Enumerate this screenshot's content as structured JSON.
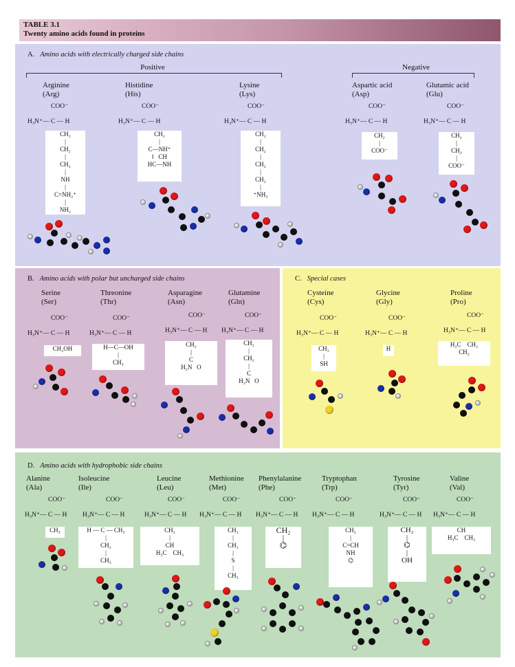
{
  "table": {
    "number": "TABLE 3.1",
    "title": "Twenty amino acids found in proteins"
  },
  "colors": {
    "header_start": "#e9c9d6",
    "header_end": "#8f566c",
    "panel_a": "#d3d3f0",
    "panel_b": "#d6bcd3",
    "panel_c": "#f8f49c",
    "panel_d": "#bfdcbd",
    "carbon": "#111111",
    "hydrogen": "#f4f4f4",
    "oxygen": "#e01818",
    "nitrogen": "#1a2fa8",
    "sulfur": "#f2cf2a"
  },
  "sections": {
    "a": {
      "letter": "A.",
      "title": "Amino acids with electrically charged side chains",
      "positive_label": "Positive",
      "negative_label": "Negative",
      "amino_acids": [
        {
          "name": "Arginine",
          "abbr": "(Arg)",
          "side_chain": "CH₂\n|\nCH₂\n|\nCH₂\n|\nNH\n|\nC=NH₂⁺\n|\nNH₂"
        },
        {
          "name": "Histidine",
          "abbr": "(His)",
          "side_chain": "CH₂\n|\nC—NH⁺\n‖   CH\nHC—NH"
        },
        {
          "name": "Lysine",
          "abbr": "(Lys)",
          "side_chain": "CH₂\n|\nCH₂\n|\nCH₂\n|\nCH₂\n|\n⁺NH₃"
        },
        {
          "name": "Aspartic acid",
          "abbr": "(Asp)",
          "side_chain": "CH₂\n|\nCOO⁻"
        },
        {
          "name": "Glutamic acid",
          "abbr": "(Glu)",
          "side_chain": "CH₂\n|\nCH₂\n|\nCOO⁻"
        }
      ]
    },
    "b": {
      "letter": "B.",
      "title": "Amino acids with polar but uncharged side chains",
      "amino_acids": [
        {
          "name": "Serine",
          "abbr": "(Ser)",
          "side_chain": "CH₂OH"
        },
        {
          "name": "Threonine",
          "abbr": "(Thr)",
          "side_chain": "H—C—OH\n|\nCH₃"
        },
        {
          "name": "Asparagine",
          "abbr": "(Asn)",
          "side_chain": "CH₂\n|\nC\nH₂N   O"
        },
        {
          "name": "Glutamine",
          "abbr": "(Gln)",
          "side_chain": "CH₂\n|\nCH₂\n|\nC\nH₂N   O"
        }
      ]
    },
    "c": {
      "letter": "C.",
      "title": "Special cases",
      "amino_acids": [
        {
          "name": "Cysteine",
          "abbr": "(Cys)",
          "side_chain": "CH₂\n|\nSH"
        },
        {
          "name": "Glycine",
          "abbr": "(Gly)",
          "side_chain": "H"
        },
        {
          "name": "Proline",
          "abbr": "(Pro)",
          "side_chain": "H₂C    CH₂\nCH₂"
        }
      ]
    },
    "d": {
      "letter": "D.",
      "title": "Amino acids with hydrophobic side chains",
      "amino_acids": [
        {
          "name": "Alanine",
          "abbr": "(Ala)",
          "side_chain": "CH₃"
        },
        {
          "name": "Isoleucine",
          "abbr": "(Ile)",
          "side_chain": "H — C — CH₃\n|\nCH₂\n|\nCH₃"
        },
        {
          "name": "Leucine",
          "abbr": "(Leu)",
          "side_chain": "CH₂\n|\nCH\nH₃C    CH₃"
        },
        {
          "name": "Methionine",
          "abbr": "(Met)",
          "side_chain": "CH₂\n|\nCH₂\n|\nS\n|\nCH₃"
        },
        {
          "name": "Phenylalanine",
          "abbr": "(Phe)",
          "side_chain": "CH₂\n|\n⌬"
        },
        {
          "name": "Tryptophan",
          "abbr": "(Trp)",
          "side_chain": "CH₂\n|\nC=CH\nNH\n⌬"
        },
        {
          "name": "Tyrosine",
          "abbr": "(Tyr)",
          "side_chain": "CH₂\n|\n⌬\n|\nOH"
        },
        {
          "name": "Valine",
          "abbr": "(Val)",
          "side_chain": "CH\nH₃C    CH₃"
        }
      ]
    }
  },
  "backbone": {
    "carboxylate": "COO⁻",
    "alpha_carbon": "H₃N⁺— C — H"
  }
}
